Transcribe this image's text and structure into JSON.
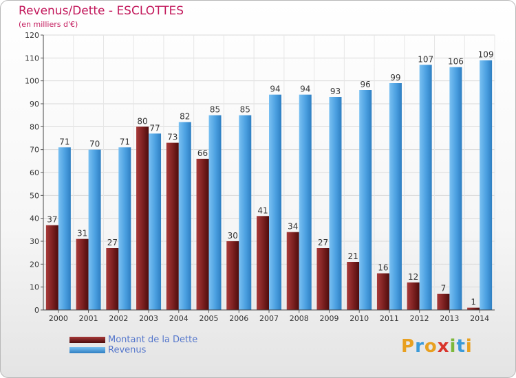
{
  "header": {
    "title": "Revenus/Dette - ESCLOTTES",
    "subtitle": "(en milliers d'€)"
  },
  "logo": {
    "text": "Proxiti"
  },
  "colors": {
    "dette": "#7a1f1f",
    "revenus": "#4a9fe0",
    "title": "#c2185b",
    "legend_text": "#5577cc"
  },
  "chart_data": {
    "type": "bar",
    "title": "Revenus/Dette - ESCLOTTES",
    "subtitle": "(en milliers d'€)",
    "categories": [
      "2000",
      "2001",
      "2002",
      "2003",
      "2004",
      "2005",
      "2006",
      "2007",
      "2008",
      "2009",
      "2010",
      "2011",
      "2012",
      "2013",
      "2014"
    ],
    "series": [
      {
        "name": "Montant de la Dette",
        "values": [
          37,
          31,
          27,
          80,
          73,
          66,
          30,
          41,
          34,
          27,
          21,
          16,
          12,
          7,
          1
        ]
      },
      {
        "name": "Revenus",
        "values": [
          71,
          70,
          71,
          77,
          82,
          85,
          85,
          94,
          94,
          93,
          96,
          99,
          107,
          106,
          109
        ]
      }
    ],
    "yticks": [
      0,
      10,
      20,
      30,
      40,
      50,
      60,
      70,
      80,
      90,
      100,
      110,
      120
    ],
    "ylim": [
      0,
      120
    ],
    "grid": true,
    "legend_position": "bottom-left"
  }
}
